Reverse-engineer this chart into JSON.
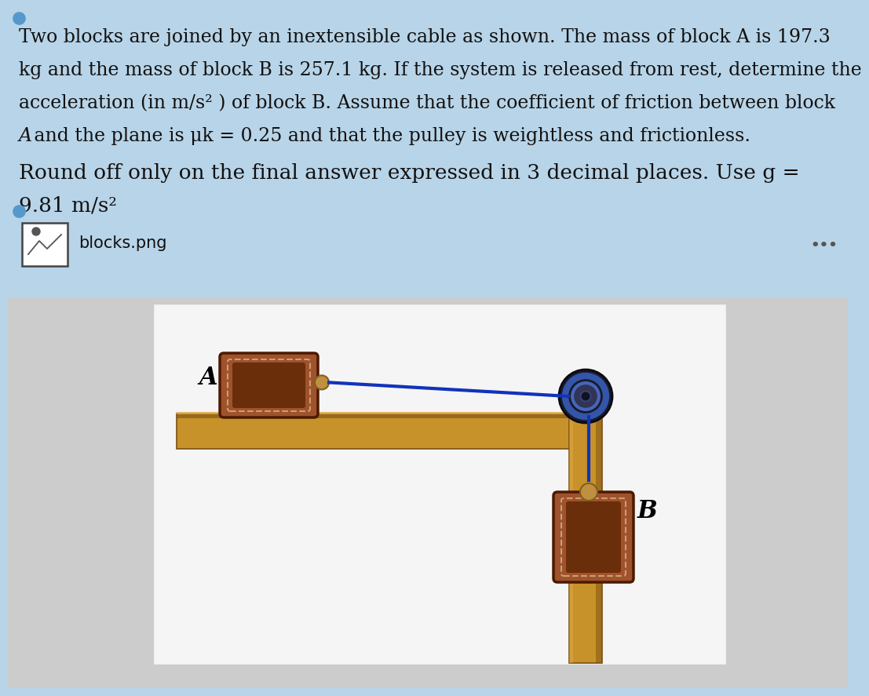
{
  "bg_color_top": "#b8d4e8",
  "bg_color_bottom": "#d8d8d8",
  "text_color": "#111111",
  "line1": "Two blocks are joined by an inextensible cable as shown. The mass of block A is 197.3",
  "line2": "kg and the mass of block B is 257.1 kg. If the system is released from rest, determine the",
  "line3": "acceleration (in m/s² ) of block B. Assume that the coefficient of friction between block",
  "line4_italic_A": "A",
  "line4_rest": " and the plane is μk = 0.25 and that the pulley is weightless and frictionless.",
  "line5": "Round off only on the final answer expressed in 3 decimal places. Use g =",
  "line6": "9.81 m/s²",
  "filename_label": "blocks.png",
  "label_A": "A",
  "label_B": "B",
  "block_outer_color": "#A0522D",
  "block_inner_color": "#6B2E0A",
  "block_border_color": "#4A1A00",
  "block_dashed_color": "#C8A070",
  "table_top_color": "#C8922A",
  "table_body_color": "#B07820",
  "table_shadow_color": "#7A5010",
  "wall_color": "#C8922A",
  "wall_shadow_color": "#7A5010",
  "cable_color": "#1133BB",
  "pulley_dark": "#1A1A2A",
  "pulley_blue": "#3355AA",
  "pulley_mid": "#4466BB",
  "hook_color": "#C09040",
  "hook_border": "#806020",
  "dot_color": "#5599CC",
  "frame_bg": "#F5F5F5",
  "frame_border": "#CCCCCC",
  "icon_border": "#444444",
  "dots_color": "#555555"
}
